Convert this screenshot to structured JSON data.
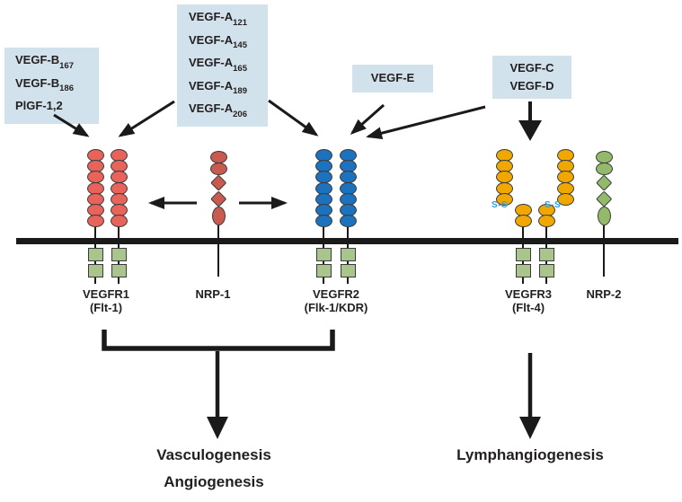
{
  "colors": {
    "bg": "#ffffff",
    "box-bg": "#d2e2ec",
    "text": "#231f20",
    "line": "#1a1a1a",
    "outline": "#3a3a3a",
    "vegfr1": "#e8635a",
    "nrp1": "#c85a50",
    "vegfr2": "#1d72bd",
    "vegfr3": "#f0a800",
    "nrp2": "#93b96b",
    "kinase": "#a9c58b",
    "ss": "#2e9fe0"
  },
  "ligand_boxes": {
    "vegf_b_plgf": {
      "items": [
        {
          "name": "VEGF-B",
          "sub": "167"
        },
        {
          "name": "VEGF-B",
          "sub": "186"
        },
        {
          "name": "PlGF-1,2",
          "sub": ""
        }
      ]
    },
    "vegf_a": {
      "items": [
        {
          "name": "VEGF-A",
          "sub": "121"
        },
        {
          "name": "VEGF-A",
          "sub": "145"
        },
        {
          "name": "VEGF-A",
          "sub": "165"
        },
        {
          "name": "VEGF-A",
          "sub": "189"
        },
        {
          "name": "VEGF-A",
          "sub": "206"
        }
      ]
    },
    "vegf_e": {
      "items": [
        {
          "name": "VEGF-E",
          "sub": ""
        }
      ]
    },
    "vegf_cd": {
      "items": [
        {
          "name": "VEGF-C",
          "sub": ""
        },
        {
          "name": "VEGF-D",
          "sub": ""
        }
      ]
    }
  },
  "receptors": {
    "vegfr1": {
      "label": "VEGFR1",
      "sublabel": "(Flt-1)",
      "chains": 2,
      "ig_domains_per_chain": 7,
      "kinase_domains_per_chain": 2
    },
    "nrp1": {
      "label": "NRP-1",
      "structure": [
        "oval",
        "oval",
        "diamond",
        "diamond",
        "tall-oval"
      ]
    },
    "vegfr2": {
      "label": "VEGFR2",
      "sublabel": "(Flk-1/KDR)",
      "chains": 2,
      "ig_domains_per_chain": 7,
      "kinase_domains_per_chain": 2
    },
    "vegfr3": {
      "label": "VEGFR3",
      "sublabel": "(Flt-4)",
      "chains": 2,
      "outer_ig_domains": 5,
      "inner_ig_domains": 2,
      "kinase_domains_per_chain": 2,
      "disulfide_label": "S-S"
    },
    "nrp2": {
      "label": "NRP-2",
      "structure": [
        "oval",
        "oval",
        "diamond",
        "diamond",
        "tall-oval"
      ]
    }
  },
  "outcomes": {
    "vasculogenesis": "Vasculogenesis",
    "angiogenesis": "Angiogenesis",
    "lymphangiogenesis": "Lymphangiogenesis"
  }
}
